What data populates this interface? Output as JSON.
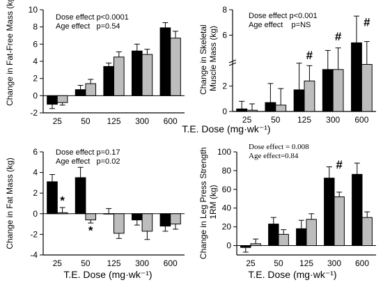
{
  "chart_data": [
    {
      "type": "bar",
      "ylabel": "Change in Fat-Free Mass (kg)",
      "xlabel": "",
      "categories": [
        "25",
        "50",
        "125",
        "300",
        "600"
      ],
      "ylim": [
        -2,
        10
      ],
      "yticks": [
        "-2",
        "0",
        "2",
        "4",
        "6",
        "8",
        "10"
      ],
      "annotations": [
        "Dose effect p<0.0001",
        "Age effect   p=0.54"
      ],
      "series": [
        {
          "color": "#000000",
          "values": [
            -1.0,
            0.7,
            3.4,
            5.2,
            7.9
          ],
          "errors": [
            0.5,
            0.5,
            0.4,
            0.8,
            0.6
          ]
        },
        {
          "color": "#bdbdbd",
          "values": [
            -0.8,
            1.4,
            4.5,
            4.8,
            6.7
          ],
          "errors": [
            0.3,
            0.5,
            0.6,
            0.6,
            0.8
          ]
        }
      ],
      "markers": []
    },
    {
      "type": "bar",
      "ylabel": "Change in Skeletal Muscle Mass (kg)",
      "xlabel": "",
      "categories": [
        "25",
        "50",
        "125",
        "300",
        "600"
      ],
      "ylim": [
        0,
        8
      ],
      "yticks": [
        "0",
        "2",
        "6",
        "8"
      ],
      "annotations": [
        "Dose effect p<0.001",
        "Age effect    p=NS"
      ],
      "series": [
        {
          "color": "#000000",
          "values": [
            0.2,
            0.7,
            1.7,
            3.3,
            5.4
          ],
          "errors": [
            0.6,
            1.5,
            2.1,
            1.5,
            2.1
          ]
        },
        {
          "color": "#bdbdbd",
          "values": [
            0.1,
            0.5,
            2.4,
            3.3,
            3.7
          ],
          "errors": [
            0.5,
            1.3,
            1.2,
            1.7,
            1.8
          ]
        }
      ],
      "markers": [
        {
          "text": "#",
          "category": "125",
          "value": 4.1
        },
        {
          "text": "#",
          "category": "300",
          "value": 5.6
        },
        {
          "text": "#",
          "category": "600",
          "value": 6.7
        }
      ]
    },
    {
      "type": "bar",
      "ylabel": "Change in Fat Mass (kg)",
      "xlabel": "T.E. Dose (mg·wk⁻¹)",
      "categories": [
        "25",
        "50",
        "125",
        "300",
        "600"
      ],
      "ylim": [
        -4,
        6
      ],
      "yticks": [
        "-4",
        "-2",
        "0",
        "2",
        "4",
        "6"
      ],
      "annotations": [
        "Dose effect p=0.17",
        "Age effect   p=0.02"
      ],
      "series": [
        {
          "color": "#000000",
          "values": [
            3.1,
            3.5,
            0.0,
            -0.6,
            -1.2
          ],
          "errors": [
            0.7,
            1.0,
            0.5,
            0.5,
            0.5
          ]
        },
        {
          "color": "#bdbdbd",
          "values": [
            0.1,
            -0.6,
            -1.9,
            -1.7,
            -1.0
          ],
          "errors": [
            0.5,
            0.3,
            0.5,
            0.8,
            0.5
          ]
        }
      ],
      "markers": [
        {
          "text": "*",
          "category": "25",
          "value": 0.9
        },
        {
          "text": "*",
          "category": "50",
          "value": -2.0
        }
      ]
    },
    {
      "type": "bar",
      "ylabel": "Change in Leg Press Strength 1RM (kg)",
      "xlabel": "T.E. Dose (mg·wk⁻¹)",
      "categories": [
        "25",
        "50",
        "125",
        "300",
        "600"
      ],
      "ylim": [
        -10,
        100
      ],
      "yticks": [
        "0",
        "20",
        "40",
        "60",
        "80",
        "100"
      ],
      "annotations": [
        "Dose effect = 0.008",
        "Age effect=0.84"
      ],
      "series": [
        {
          "color": "#000000",
          "values": [
            -2,
            23,
            18,
            72,
            76
          ],
          "errors": [
            5,
            7,
            9,
            12,
            12
          ]
        },
        {
          "color": "#bdbdbd",
          "values": [
            2,
            12,
            28,
            52,
            30
          ],
          "errors": [
            5,
            5,
            6,
            5,
            6
          ]
        }
      ],
      "markers": [
        {
          "text": "#",
          "category": "300",
          "value": 82
        }
      ]
    }
  ]
}
